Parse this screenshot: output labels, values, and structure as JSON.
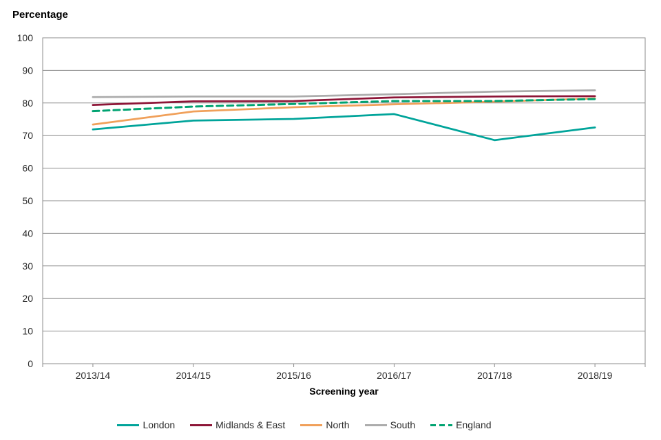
{
  "chart_data": {
    "type": "line",
    "title": "Percentage",
    "xlabel": "Screening year",
    "ylabel": "",
    "ylim": [
      0,
      100
    ],
    "y_ticks": [
      0,
      10,
      20,
      30,
      40,
      50,
      60,
      70,
      80,
      90,
      100
    ],
    "grid": "horizontal",
    "legend_position": "bottom",
    "categories": [
      "2013/14",
      "2014/15",
      "2015/16",
      "2016/17",
      "2017/18",
      "2018/19"
    ],
    "series": [
      {
        "name": "London",
        "style": "solid",
        "color": "#00a49a",
        "values": [
          71.9,
          74.6,
          75.1,
          76.6,
          68.6,
          72.5
        ]
      },
      {
        "name": "Midlands & East",
        "style": "solid",
        "color": "#8d1537",
        "values": [
          79.4,
          80.5,
          80.6,
          81.7,
          82.0,
          82.1
        ]
      },
      {
        "name": "North",
        "style": "solid",
        "color": "#f0a05a",
        "values": [
          73.4,
          77.4,
          78.7,
          79.6,
          80.4,
          81.4
        ]
      },
      {
        "name": "South",
        "style": "solid",
        "color": "#acacac",
        "values": [
          81.8,
          82.0,
          82.0,
          82.7,
          83.5,
          83.9
        ]
      },
      {
        "name": "England",
        "style": "dashed",
        "color": "#00a371",
        "values": [
          77.5,
          78.9,
          79.7,
          80.6,
          80.6,
          81.2
        ]
      }
    ],
    "axis_color": "#8c8c8c",
    "text_color": "#2b2b2b"
  }
}
